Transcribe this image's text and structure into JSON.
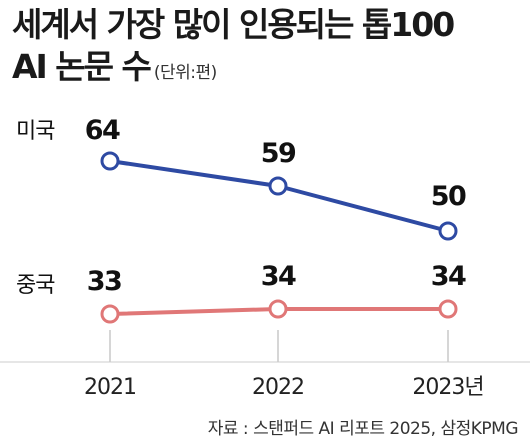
{
  "title_line1": "세계서 가장 많이 인용되는 톱100",
  "title_line2": "AI 논문 수",
  "unit": "(단위:편)",
  "source": "자료 : 스탠퍼드 AI 리포트 2025, 삼정KPMG",
  "chart_data": {
    "type": "line",
    "title": "세계서 가장 많이 인용되는 톱100 AI 논문 수",
    "x": [
      "2021",
      "2022",
      "2023"
    ],
    "x_tick_labels": [
      "2021",
      "2022",
      "2023년"
    ],
    "series": [
      {
        "name": "미국",
        "values": [
          64,
          59,
          50
        ],
        "color": "#2e4aa3"
      },
      {
        "name": "중국",
        "values": [
          33,
          34,
          34
        ],
        "color": "#e07777"
      }
    ],
    "data_labels": {
      "미국": [
        "64",
        "59",
        "50"
      ],
      "중국": [
        "33",
        "34",
        "34"
      ]
    },
    "legend": "inline-left",
    "grid": false
  }
}
